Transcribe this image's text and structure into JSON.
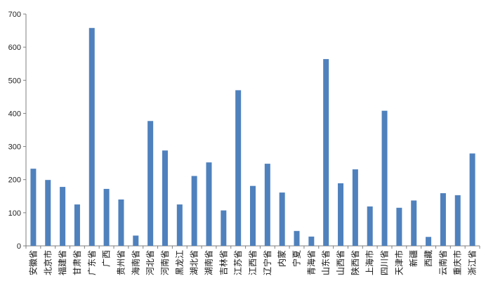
{
  "chart_data": {
    "type": "bar",
    "title": "",
    "xlabel": "",
    "ylabel": "",
    "ylim": [
      0,
      700
    ],
    "yticks": [
      0,
      100,
      200,
      300,
      400,
      500,
      600,
      700
    ],
    "grid": false,
    "legend": "none",
    "bar_color": "#4f81bd",
    "axis_color": "#7f7f7f",
    "categories": [
      "安徽省",
      "北京市",
      "福建省",
      "甘肃省",
      "广东省",
      "广西",
      "贵州省",
      "海南省",
      "河北省",
      "河南省",
      "黑龙江",
      "湖北省",
      "湖南省",
      "吉林省",
      "江苏省",
      "江西省",
      "辽宁省",
      "内蒙",
      "宁夏",
      "青海省",
      "山东省",
      "山西省",
      "陕西省",
      "上海市",
      "四川省",
      "天津市",
      "新疆",
      "西藏",
      "云南省",
      "重庆市",
      "浙江省"
    ],
    "values": [
      233,
      199,
      178,
      125,
      658,
      172,
      140,
      31,
      377,
      288,
      125,
      211,
      252,
      107,
      470,
      181,
      248,
      161,
      45,
      28,
      564,
      189,
      231,
      119,
      408,
      115,
      137,
      27,
      159,
      153,
      279
    ]
  }
}
